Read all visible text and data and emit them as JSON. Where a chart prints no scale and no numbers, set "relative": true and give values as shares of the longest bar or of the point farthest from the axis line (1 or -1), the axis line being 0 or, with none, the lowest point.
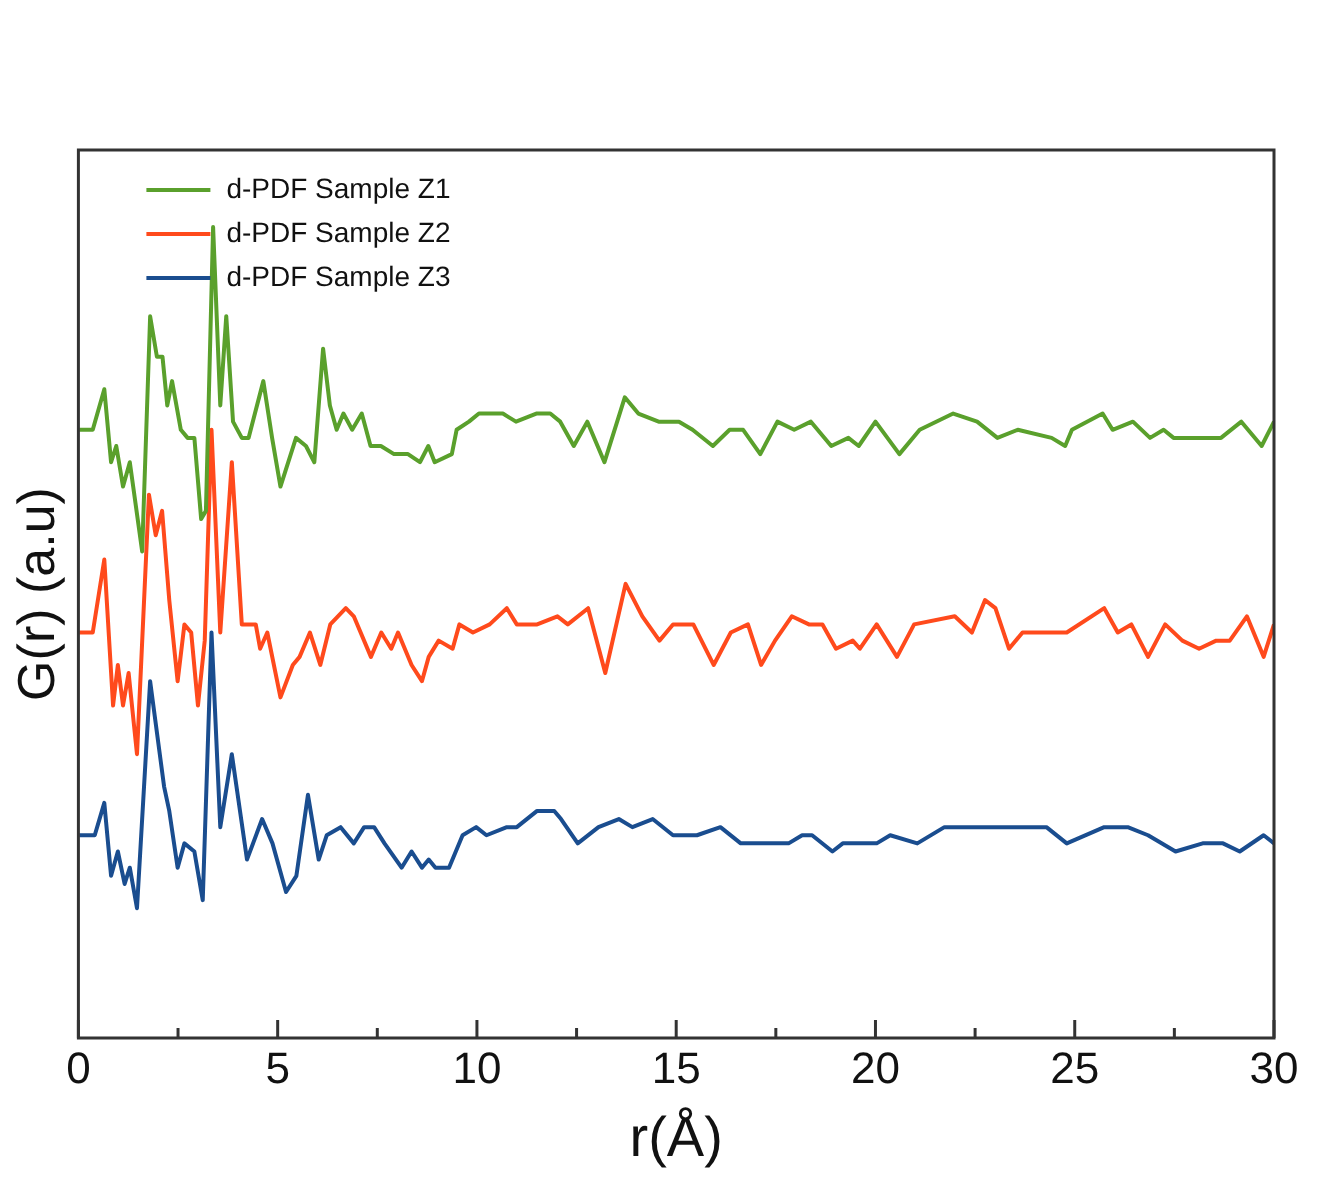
{
  "chart_data": {
    "type": "line",
    "xlabel": "r(Å)",
    "ylabel": "G(r) (a.u)",
    "relative": true,
    "xlim": [
      0,
      30
    ],
    "xticks": [
      0,
      {
        "value": 2.5,
        "label": null
      },
      5,
      {
        "value": 7.5,
        "label": null
      },
      10,
      {
        "value": 12.5,
        "label": null
      },
      15,
      {
        "value": 17.5,
        "label": null
      },
      20,
      {
        "value": 22.5,
        "label": null
      },
      25,
      {
        "value": 27.5,
        "label": null
      },
      30
    ],
    "grid": false,
    "legend": "top left",
    "marker": "none",
    "line_style": "solid",
    "series": [
      {
        "name": "d-PDF Sample Z1",
        "color": "#5aa02c",
        "x": [
          0.02,
          0.36,
          0.65,
          0.82,
          0.95,
          1.12,
          1.29,
          1.6,
          1.8,
          1.97,
          2.11,
          2.23,
          2.35,
          2.57,
          2.74,
          2.91,
          3.08,
          3.2,
          3.38,
          3.56,
          3.71,
          3.88,
          4.1,
          4.27,
          4.64,
          4.86,
          5.07,
          5.2,
          5.46,
          5.71,
          5.92,
          6.14,
          6.31,
          6.48,
          6.65,
          6.87,
          7.11,
          7.33,
          7.59,
          7.92,
          8.27,
          8.57,
          8.78,
          8.94,
          9.37,
          9.49,
          9.8,
          10.05,
          10.31,
          10.65,
          10.98,
          11.49,
          11.84,
          12.09,
          12.43,
          12.77,
          13.2,
          13.71,
          14.05,
          14.56,
          15.07,
          15.41,
          15.92,
          16.34,
          16.68,
          17.11,
          17.54,
          17.96,
          18.38,
          18.89,
          19.32,
          19.58,
          20,
          20.6,
          21.11,
          21.95,
          22.55,
          23.06,
          23.57,
          24.42,
          24.76,
          24.93,
          25.7,
          25.95,
          26.46,
          26.89,
          27.23,
          27.48,
          28.16,
          28.67,
          29.18,
          29.69,
          30
        ],
        "values": [
          0.75,
          0.75,
          0.8,
          0.71,
          0.73,
          0.68,
          0.71,
          0.6,
          0.89,
          0.84,
          0.84,
          0.78,
          0.81,
          0.75,
          0.74,
          0.74,
          0.64,
          0.65,
          1,
          0.78,
          0.89,
          0.76,
          0.74,
          0.74,
          0.81,
          0.74,
          0.68,
          0.7,
          0.74,
          0.73,
          0.71,
          0.85,
          0.78,
          0.75,
          0.77,
          0.75,
          0.77,
          0.73,
          0.73,
          0.72,
          0.72,
          0.71,
          0.73,
          0.71,
          0.72,
          0.75,
          0.76,
          0.77,
          0.77,
          0.77,
          0.76,
          0.77,
          0.77,
          0.76,
          0.73,
          0.76,
          0.71,
          0.79,
          0.77,
          0.76,
          0.76,
          0.75,
          0.73,
          0.75,
          0.75,
          0.72,
          0.76,
          0.75,
          0.76,
          0.73,
          0.74,
          0.73,
          0.76,
          0.72,
          0.75,
          0.77,
          0.76,
          0.74,
          0.75,
          0.74,
          0.73,
          0.75,
          0.77,
          0.75,
          0.76,
          0.74,
          0.75,
          0.74,
          0.74,
          0.74,
          0.76,
          0.73,
          0.76
        ]
      },
      {
        "name": "d-PDF Sample Z2",
        "color": "#ff4a1c",
        "x": [
          0.02,
          0.36,
          0.65,
          0.87,
          0.99,
          1.12,
          1.26,
          1.47,
          1.77,
          1.94,
          2.1,
          2.28,
          2.49,
          2.66,
          2.83,
          3,
          3.17,
          3.34,
          3.56,
          3.85,
          4.1,
          4.45,
          4.56,
          4.74,
          5.07,
          5.38,
          5.55,
          5.81,
          6.07,
          6.32,
          6.71,
          6.91,
          7.34,
          7.6,
          7.85,
          8.02,
          8.36,
          8.62,
          8.79,
          9.04,
          9.39,
          9.56,
          9.9,
          10.32,
          10.75,
          11,
          11.51,
          12.02,
          12.28,
          12.79,
          13.22,
          13.73,
          14.15,
          14.58,
          14.92,
          15.43,
          15.94,
          16.37,
          16.8,
          17.13,
          17.48,
          17.9,
          18.33,
          18.67,
          19.01,
          19.43,
          19.61,
          20.03,
          20.54,
          20.97,
          21.99,
          22.42,
          22.75,
          23.01,
          23.35,
          23.69,
          24.12,
          24.8,
          25.74,
          26.08,
          26.42,
          26.84,
          27.27,
          27.7,
          28.12,
          28.55,
          28.89,
          29.32,
          29.74,
          30
        ],
        "values": [
          0.5,
          0.5,
          0.59,
          0.41,
          0.46,
          0.41,
          0.45,
          0.35,
          0.67,
          0.62,
          0.65,
          0.54,
          0.44,
          0.51,
          0.5,
          0.41,
          0.49,
          0.75,
          0.5,
          0.71,
          0.51,
          0.51,
          0.48,
          0.5,
          0.42,
          0.46,
          0.47,
          0.5,
          0.46,
          0.51,
          0.53,
          0.52,
          0.47,
          0.5,
          0.48,
          0.5,
          0.46,
          0.44,
          0.47,
          0.49,
          0.48,
          0.51,
          0.5,
          0.51,
          0.53,
          0.51,
          0.51,
          0.52,
          0.51,
          0.53,
          0.45,
          0.56,
          0.52,
          0.49,
          0.51,
          0.51,
          0.46,
          0.5,
          0.51,
          0.46,
          0.49,
          0.52,
          0.51,
          0.51,
          0.48,
          0.49,
          0.48,
          0.51,
          0.47,
          0.51,
          0.52,
          0.5,
          0.54,
          0.53,
          0.48,
          0.5,
          0.5,
          0.5,
          0.53,
          0.5,
          0.51,
          0.47,
          0.51,
          0.49,
          0.48,
          0.49,
          0.49,
          0.52,
          0.47,
          0.51
        ]
      },
      {
        "name": "d-PDF Sample Z3",
        "color": "#1a4d8f",
        "x": [
          0.02,
          0.41,
          0.65,
          0.82,
          0.99,
          1.16,
          1.29,
          1.47,
          1.8,
          2.15,
          2.28,
          2.49,
          2.66,
          2.91,
          3.12,
          3.34,
          3.56,
          3.85,
          4.23,
          4.61,
          4.87,
          5.21,
          5.47,
          5.76,
          6.03,
          6.23,
          6.58,
          6.91,
          7.17,
          7.42,
          7.68,
          8.11,
          8.36,
          8.62,
          8.79,
          8.96,
          9.3,
          9.64,
          9.98,
          10.24,
          10.75,
          11,
          11.51,
          11.94,
          12.11,
          12.53,
          13.05,
          13.56,
          13.9,
          14.41,
          14.92,
          15.52,
          16.11,
          16.62,
          17.13,
          17.82,
          18.16,
          18.41,
          18.92,
          19.18,
          20.03,
          20.37,
          21.05,
          21.73,
          22.42,
          23.27,
          23.78,
          24.29,
          24.8,
          25.74,
          26.33,
          26.84,
          27.53,
          28.21,
          28.72,
          29.14,
          29.74,
          30
        ],
        "values": [
          0.25,
          0.25,
          0.29,
          0.2,
          0.23,
          0.19,
          0.21,
          0.16,
          0.44,
          0.31,
          0.28,
          0.21,
          0.24,
          0.23,
          0.17,
          0.5,
          0.26,
          0.35,
          0.22,
          0.27,
          0.24,
          0.18,
          0.2,
          0.3,
          0.22,
          0.25,
          0.26,
          0.24,
          0.26,
          0.26,
          0.24,
          0.21,
          0.23,
          0.21,
          0.22,
          0.21,
          0.21,
          0.25,
          0.26,
          0.25,
          0.26,
          0.26,
          0.28,
          0.28,
          0.27,
          0.24,
          0.26,
          0.27,
          0.26,
          0.27,
          0.25,
          0.25,
          0.26,
          0.24,
          0.24,
          0.24,
          0.25,
          0.25,
          0.23,
          0.24,
          0.24,
          0.25,
          0.24,
          0.26,
          0.26,
          0.26,
          0.26,
          0.26,
          0.24,
          0.26,
          0.26,
          0.25,
          0.23,
          0.24,
          0.24,
          0.23,
          0.25,
          0.24
        ]
      }
    ]
  }
}
